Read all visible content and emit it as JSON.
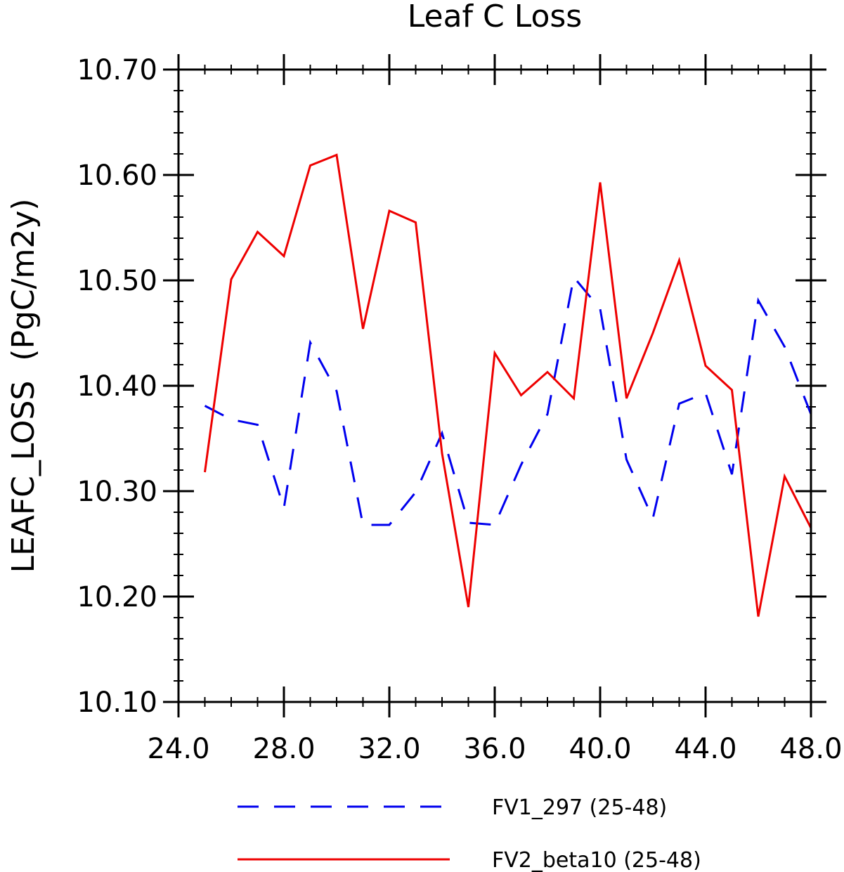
{
  "chart_data": {
    "type": "line",
    "title": "Leaf C Loss",
    "xlabel": "",
    "ylabel": "LEAFC_LOSS  (PgC/m2y)",
    "xlim": [
      24,
      48
    ],
    "ylim": [
      10.1,
      10.7
    ],
    "x_ticks": [
      24,
      28,
      32,
      36,
      40,
      44,
      48
    ],
    "x_tick_labels": [
      "24.0",
      "28.0",
      "32.0",
      "36.0",
      "40.0",
      "44.0",
      "48.0"
    ],
    "y_ticks": [
      10.1,
      10.2,
      10.3,
      10.4,
      10.5,
      10.6,
      10.7
    ],
    "y_tick_labels": [
      "10.10",
      "10.20",
      "10.30",
      "10.40",
      "10.50",
      "10.60",
      "10.70"
    ],
    "grid": false,
    "legend_position": "bottom",
    "x": [
      25,
      26,
      27,
      28,
      29,
      30,
      31,
      32,
      33,
      34,
      35,
      36,
      37,
      38,
      39,
      40,
      41,
      42,
      43,
      44,
      45,
      46,
      47,
      48
    ],
    "series": [
      {
        "name": "FV1_297 (25-48)",
        "color": "#0000ee",
        "dash": "dashed",
        "values": [
          10.381,
          10.368,
          10.363,
          10.284,
          10.441,
          10.395,
          10.268,
          10.268,
          10.299,
          10.355,
          10.27,
          10.268,
          10.325,
          10.373,
          10.503,
          10.473,
          10.33,
          10.274,
          10.383,
          10.393,
          10.316,
          10.481,
          10.437,
          10.373
        ]
      },
      {
        "name": "FV2_beta10 (25-48)",
        "color": "#ee0000",
        "dash": "solid",
        "values": [
          10.318,
          10.501,
          10.546,
          10.523,
          10.609,
          10.619,
          10.454,
          10.566,
          10.555,
          10.336,
          10.19,
          10.431,
          10.391,
          10.413,
          10.388,
          10.593,
          10.388,
          10.45,
          10.519,
          10.419,
          10.396,
          10.181,
          10.314,
          10.265
        ]
      }
    ]
  }
}
